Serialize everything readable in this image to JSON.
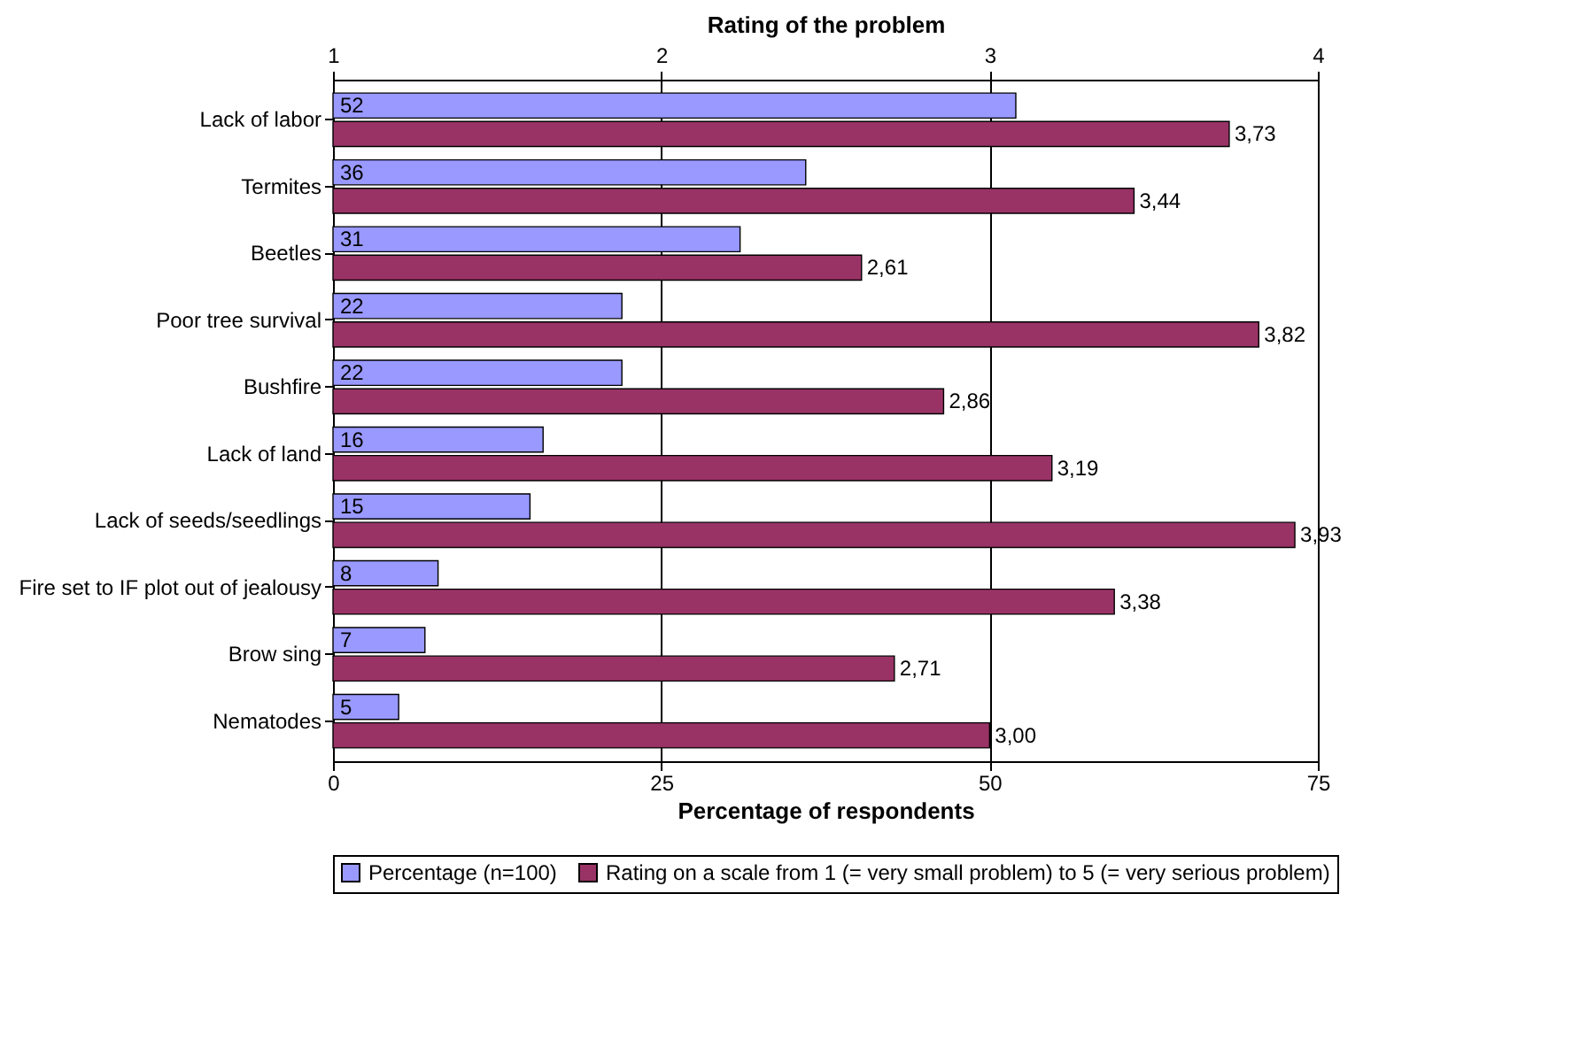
{
  "chart_data": {
    "type": "bar",
    "orientation": "horizontal",
    "categories": [
      "Lack of labor",
      "Termites",
      "Beetles",
      "Poor tree survival",
      "Bushfire",
      "Lack of land",
      "Lack of seeds/seedlings",
      "Fire set to IF plot out of jealousy",
      "Brow sing",
      "Nematodes"
    ],
    "series": [
      {
        "name": "Percentage (n=100)",
        "color": "#9999ff",
        "values": [
          52,
          36,
          31,
          22,
          22,
          16,
          15,
          8,
          7,
          5
        ],
        "value_labels": [
          "52",
          "36",
          "31",
          "22",
          "22",
          "16",
          "15",
          "8",
          "7",
          "5"
        ]
      },
      {
        "name": "Rating on a scale from 1 (= very small problem) to 5 (= very serious problem)",
        "color": "#993366",
        "axis": "x2",
        "values": [
          3.73,
          3.44,
          2.61,
          3.82,
          2.86,
          3.19,
          3.93,
          3.38,
          2.71,
          3.0
        ],
        "value_labels": [
          "3,73",
          "3,44",
          "2,61",
          "3,82",
          "2,86",
          "3,19",
          "3,93",
          "3,38",
          "2,71",
          "3,00"
        ]
      }
    ],
    "xlabel": "Percentage of respondents",
    "x2label": "Rating of the problem",
    "xlim": [
      0,
      75
    ],
    "xticks": [
      0,
      25,
      50,
      75
    ],
    "x2lim": [
      1,
      4
    ],
    "x2ticks": [
      1,
      2,
      3,
      4
    ],
    "grid": "x",
    "legend": "bottom"
  }
}
